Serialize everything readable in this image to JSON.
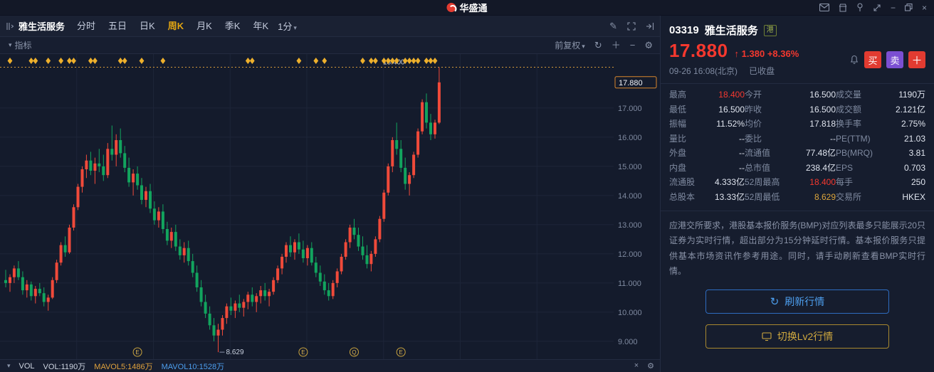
{
  "colors": {
    "red": "#f5382e",
    "green": "#12a45e",
    "yellow": "#dca53c",
    "blue": "#4d9fef",
    "orange": "#e0a23c"
  },
  "titlebar": {
    "app_name": "华盛通"
  },
  "toolbar": {
    "stock_name": "雅生活服务",
    "periods": [
      "分时",
      "五日",
      "日K",
      "周K",
      "月K",
      "季K",
      "年K"
    ],
    "active_period": "周K",
    "minute_label": "1分"
  },
  "indicator_bar": {
    "label": "指标",
    "adjust_label": "前复权"
  },
  "volbar": {
    "vol_label": "VOL",
    "vol_value": "VOL:1190万",
    "mavol5": "MAVOL5:1486万",
    "mavol10": "MAVOL10:1528万"
  },
  "chart": {
    "y_axis": {
      "current_price_label": "17.880",
      "current_price": 17.88,
      "grid_prices": [
        17,
        16,
        15,
        14,
        13,
        12,
        11,
        10,
        9
      ]
    },
    "annotations": {
      "high_line_value": 18.4,
      "high_line_label": "18.400",
      "low_label": "8.629",
      "low_index": 50
    },
    "event_diamond_indices": [
      1,
      6,
      7,
      10,
      13,
      15,
      16,
      20,
      21,
      27,
      28,
      32,
      37,
      57,
      58,
      69,
      73,
      75,
      84,
      86,
      87,
      89,
      90,
      91,
      92,
      94,
      95,
      96,
      97,
      99,
      100,
      101
    ],
    "bottom_events": [
      {
        "index": 31,
        "label": "E"
      },
      {
        "index": 70,
        "label": "E"
      },
      {
        "index": 82,
        "label": "Q"
      },
      {
        "index": 93,
        "label": "E"
      }
    ],
    "chart_data": {
      "type": "candlestick",
      "title": "雅生活服务 周K",
      "x": "weeks",
      "ylim": [
        8.2,
        18.85
      ],
      "up_color": "#f04a3a",
      "down_color": "#12a45e",
      "candles": [
        [
          11.1,
          11.45,
          10.85,
          11.0
        ],
        [
          11.0,
          11.3,
          10.7,
          11.2
        ],
        [
          11.2,
          11.6,
          11.0,
          11.5
        ],
        [
          11.5,
          11.75,
          11.1,
          11.2
        ],
        [
          11.2,
          11.4,
          10.6,
          10.75
        ],
        [
          10.75,
          11.1,
          10.5,
          10.95
        ],
        [
          10.95,
          11.05,
          10.4,
          10.55
        ],
        [
          10.55,
          10.9,
          10.3,
          10.8
        ],
        [
          10.8,
          11.0,
          10.55,
          10.65
        ],
        [
          10.65,
          10.85,
          10.2,
          10.35
        ],
        [
          10.35,
          10.6,
          10.05,
          10.5
        ],
        [
          10.5,
          11.2,
          10.45,
          11.1
        ],
        [
          11.1,
          11.8,
          11.0,
          11.7
        ],
        [
          11.7,
          12.4,
          11.6,
          12.3
        ],
        [
          12.3,
          12.6,
          11.9,
          12.05
        ],
        [
          12.05,
          13.0,
          12.0,
          12.9
        ],
        [
          12.9,
          13.7,
          12.8,
          13.6
        ],
        [
          13.6,
          14.4,
          13.5,
          14.3
        ],
        [
          14.3,
          15.0,
          14.1,
          14.9
        ],
        [
          14.9,
          15.4,
          14.6,
          15.2
        ],
        [
          15.2,
          15.5,
          14.7,
          14.85
        ],
        [
          14.85,
          15.3,
          14.4,
          15.1
        ],
        [
          15.1,
          15.6,
          14.8,
          15.0
        ],
        [
          15.0,
          15.4,
          14.5,
          14.7
        ],
        [
          14.7,
          15.8,
          14.6,
          15.6
        ],
        [
          15.6,
          16.4,
          15.2,
          15.4
        ],
        [
          15.4,
          16.1,
          15.0,
          15.9
        ],
        [
          15.9,
          16.3,
          15.3,
          15.45
        ],
        [
          15.45,
          15.7,
          14.8,
          14.95
        ],
        [
          14.95,
          15.3,
          14.3,
          14.45
        ],
        [
          14.45,
          14.9,
          14.0,
          14.75
        ],
        [
          14.75,
          15.0,
          14.2,
          14.35
        ],
        [
          14.35,
          14.6,
          13.7,
          13.85
        ],
        [
          13.85,
          14.3,
          13.6,
          14.15
        ],
        [
          14.15,
          14.4,
          13.4,
          13.55
        ],
        [
          13.55,
          13.8,
          13.0,
          13.15
        ],
        [
          13.15,
          13.6,
          12.9,
          13.45
        ],
        [
          13.45,
          13.7,
          12.7,
          12.85
        ],
        [
          12.85,
          13.1,
          12.3,
          12.45
        ],
        [
          12.45,
          12.9,
          12.2,
          12.75
        ],
        [
          12.75,
          13.0,
          12.1,
          12.25
        ],
        [
          12.25,
          12.5,
          11.8,
          11.95
        ],
        [
          11.95,
          12.4,
          11.7,
          12.2
        ],
        [
          12.2,
          12.45,
          11.6,
          11.75
        ],
        [
          11.75,
          12.0,
          11.2,
          11.35
        ],
        [
          11.35,
          11.6,
          10.7,
          10.85
        ],
        [
          10.85,
          11.1,
          10.2,
          10.35
        ],
        [
          10.35,
          10.6,
          9.8,
          9.95
        ],
        [
          9.95,
          10.2,
          9.4,
          9.55
        ],
        [
          9.55,
          9.8,
          9.0,
          9.2
        ],
        [
          9.2,
          9.6,
          8.629,
          9.4
        ],
        [
          9.4,
          9.9,
          9.2,
          9.8
        ],
        [
          9.8,
          10.3,
          9.6,
          10.2
        ],
        [
          10.2,
          10.5,
          9.9,
          10.05
        ],
        [
          10.05,
          10.4,
          9.8,
          10.3
        ],
        [
          10.3,
          10.6,
          10.0,
          10.15
        ],
        [
          10.15,
          10.45,
          9.85,
          10.35
        ],
        [
          10.35,
          10.7,
          10.1,
          10.6
        ],
        [
          10.6,
          10.85,
          10.2,
          10.35
        ],
        [
          10.35,
          10.65,
          10.0,
          10.55
        ],
        [
          10.55,
          10.9,
          10.3,
          10.75
        ],
        [
          10.75,
          11.0,
          10.4,
          10.55
        ],
        [
          10.55,
          10.8,
          10.2,
          10.7
        ],
        [
          10.7,
          11.2,
          10.6,
          11.1
        ],
        [
          11.1,
          11.6,
          11.0,
          11.5
        ],
        [
          11.5,
          12.0,
          11.3,
          11.9
        ],
        [
          11.9,
          12.4,
          11.7,
          12.3
        ],
        [
          12.3,
          12.6,
          11.9,
          12.05
        ],
        [
          12.05,
          12.5,
          11.8,
          12.4
        ],
        [
          12.4,
          12.7,
          12.0,
          12.15
        ],
        [
          12.15,
          12.45,
          11.7,
          11.85
        ],
        [
          11.85,
          12.3,
          11.6,
          12.2
        ],
        [
          12.2,
          12.4,
          11.6,
          11.7
        ],
        [
          11.7,
          11.9,
          11.2,
          11.35
        ],
        [
          11.35,
          11.6,
          10.9,
          11.05
        ],
        [
          11.05,
          11.3,
          10.6,
          10.75
        ],
        [
          10.75,
          11.0,
          10.4,
          10.55
        ],
        [
          10.55,
          11.1,
          10.45,
          11.0
        ],
        [
          11.0,
          11.5,
          10.85,
          11.4
        ],
        [
          11.4,
          12.0,
          11.3,
          11.9
        ],
        [
          11.9,
          12.5,
          11.8,
          12.4
        ],
        [
          12.4,
          13.0,
          12.2,
          12.9
        ],
        [
          12.9,
          13.2,
          12.5,
          12.65
        ],
        [
          12.65,
          12.9,
          12.1,
          12.25
        ],
        [
          12.25,
          12.6,
          11.8,
          11.95
        ],
        [
          11.95,
          12.3,
          11.5,
          11.65
        ],
        [
          11.65,
          12.1,
          11.4,
          12.0
        ],
        [
          12.0,
          12.6,
          11.9,
          12.5
        ],
        [
          12.5,
          13.3,
          12.4,
          13.2
        ],
        [
          13.2,
          14.2,
          13.1,
          14.1
        ],
        [
          14.1,
          15.1,
          14.0,
          15.0
        ],
        [
          15.0,
          16.0,
          14.8,
          15.9
        ],
        [
          15.9,
          16.5,
          15.4,
          15.6
        ],
        [
          15.6,
          15.9,
          14.8,
          14.95
        ],
        [
          14.95,
          15.3,
          14.2,
          14.4
        ],
        [
          14.4,
          14.8,
          14.0,
          14.7
        ],
        [
          14.7,
          15.5,
          14.6,
          15.4
        ],
        [
          15.4,
          16.3,
          15.3,
          16.2
        ],
        [
          16.2,
          17.3,
          16.1,
          17.2
        ],
        [
          17.2,
          17.5,
          16.3,
          16.5
        ],
        [
          16.5,
          16.8,
          15.9,
          16.1
        ],
        [
          16.1,
          16.6,
          15.95,
          16.5
        ],
        [
          16.5,
          18.4,
          16.45,
          17.88
        ]
      ]
    }
  },
  "quote_panel": {
    "code": "03319",
    "name": "雅生活服务",
    "market_badge": "港",
    "price": "17.880",
    "change_arrow": "↑",
    "change": "1.380",
    "change_pct": "+8.36%",
    "datetime": "09-26 16:08(北京)",
    "session_status": "已收盘",
    "buy_label": "买",
    "sell_label": "卖",
    "add_label": "＋",
    "stats_rows": [
      [
        {
          "l": "最高",
          "v": "18.400",
          "c": "red"
        },
        {
          "l": "今开",
          "v": "16.500"
        },
        {
          "l": "成交量",
          "v": "1190万"
        }
      ],
      [
        {
          "l": "最低",
          "v": "16.500"
        },
        {
          "l": "昨收",
          "v": "16.500"
        },
        {
          "l": "成交额",
          "v": "2.121亿"
        }
      ],
      [
        {
          "l": "振幅",
          "v": "11.52%"
        },
        {
          "l": "均价",
          "v": "17.818"
        },
        {
          "l": "换手率",
          "v": "2.75%"
        }
      ],
      [
        {
          "l": "量比",
          "v": "--"
        },
        {
          "l": "委比",
          "v": "--"
        },
        {
          "l": "PE(TTM)",
          "v": "21.03"
        }
      ],
      [
        {
          "l": "外盘",
          "v": "--"
        },
        {
          "l": "流通值",
          "v": "77.48亿"
        },
        {
          "l": "PB(MRQ)",
          "v": "3.81"
        }
      ],
      [
        {
          "l": "内盘",
          "v": "--"
        },
        {
          "l": "总市值",
          "v": "238.4亿"
        },
        {
          "l": "EPS",
          "v": "0.703"
        }
      ],
      [
        {
          "l": "流通股",
          "v": "4.333亿"
        },
        {
          "l": "52周最高",
          "v": "18.400",
          "c": "red"
        },
        {
          "l": "每手",
          "v": "250"
        }
      ],
      [
        {
          "l": "总股本",
          "v": "13.33亿"
        },
        {
          "l": "52周最低",
          "v": "8.629",
          "c": "yellow"
        },
        {
          "l": "交易所",
          "v": "HKEX"
        }
      ]
    ],
    "notice": "应港交所要求，港股基本报价服务(BMP)对应列表最多只能展示20只证券为实时行情，超出部分为15分钟延时行情。基本报价服务只提供基本市场资讯作参考用途。同时，请手动刷新查看BMP实时行情。",
    "refresh_button_label": "刷新行情",
    "lv2_button_label": "切换Lv2行情"
  }
}
